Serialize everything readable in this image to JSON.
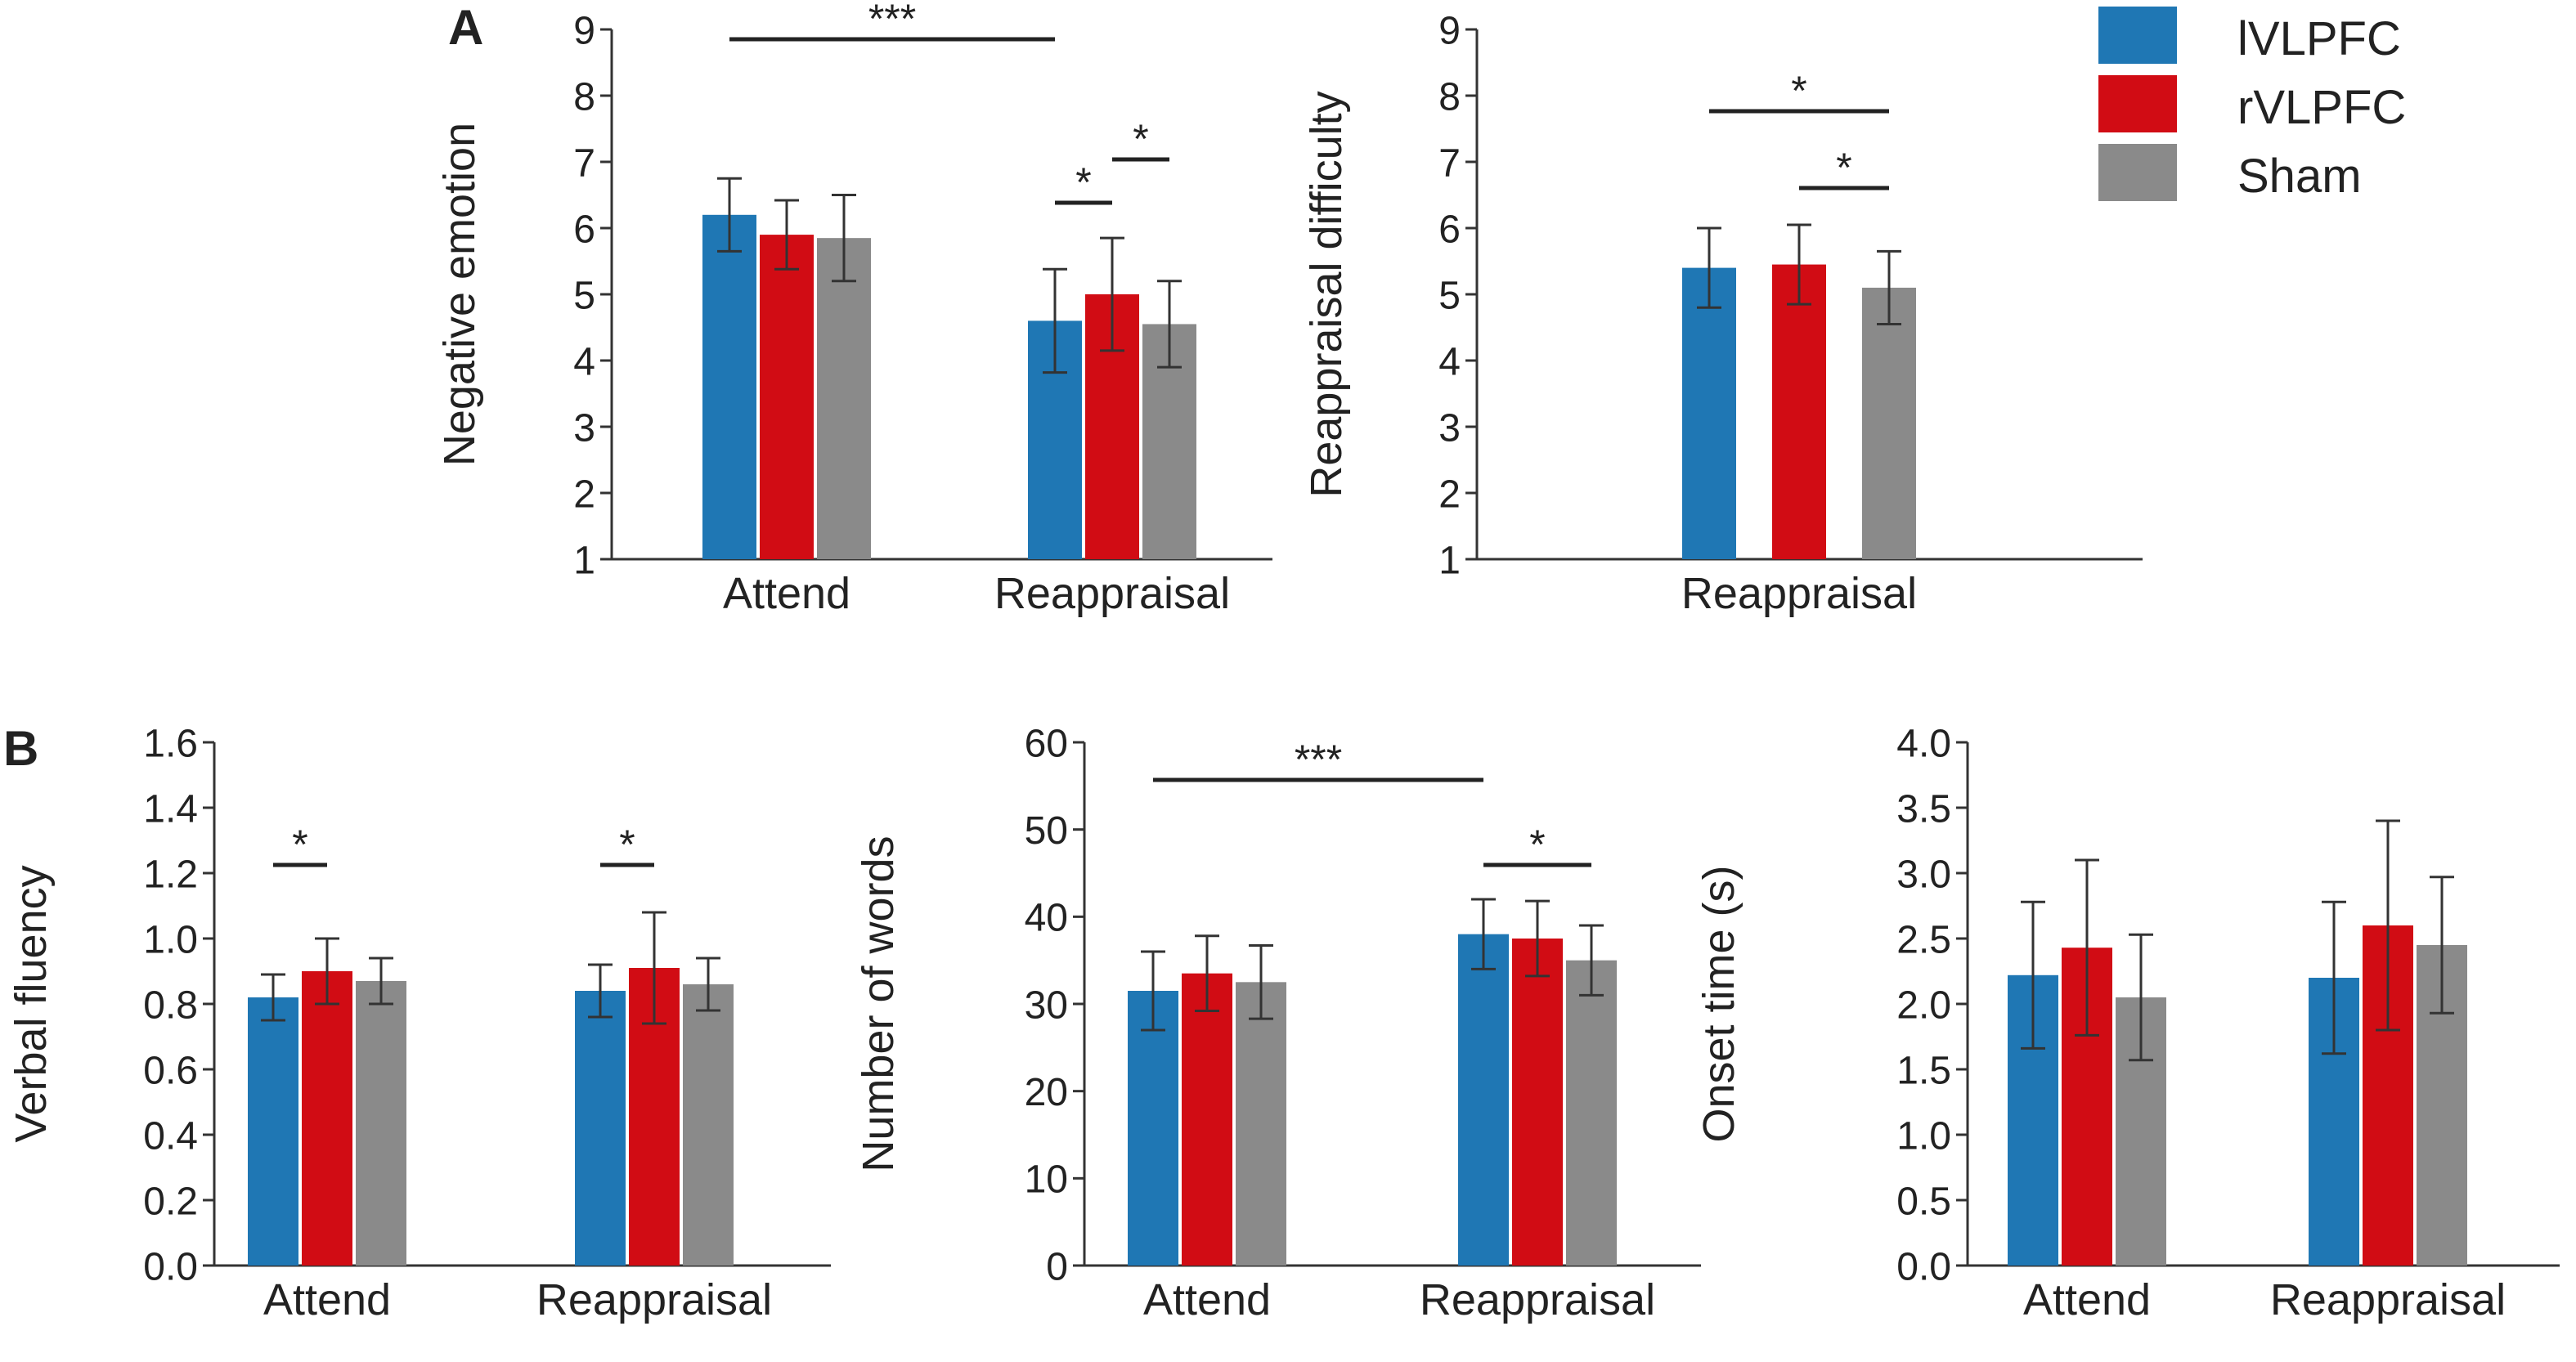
{
  "panel_labels": [
    "A",
    "B"
  ],
  "legend": {
    "entries": [
      {
        "label": "lVLPFC",
        "color": "#1f77b4"
      },
      {
        "label": "rVLPFC",
        "color": "#d10c14"
      },
      {
        "label": "Sham",
        "color": "#8a8a8a"
      }
    ]
  },
  "chart_data": [
    {
      "id": "negative-emotion",
      "type": "bar",
      "ylabel": "Negative emotion",
      "xlabel": "",
      "ylim": [
        1,
        9
      ],
      "yticks": [
        "1",
        "2",
        "3",
        "4",
        "5",
        "6",
        "7",
        "8",
        "9"
      ],
      "categories": [
        "Attend",
        "Reappraisal"
      ],
      "series": [
        {
          "name": "lVLPFC",
          "values": [
            6.2,
            4.6
          ],
          "errors": [
            0.55,
            0.78
          ]
        },
        {
          "name": "rVLPFC",
          "values": [
            5.9,
            5.0
          ],
          "errors": [
            0.52,
            0.85
          ]
        },
        {
          "name": "Sham",
          "values": [
            5.85,
            4.55
          ],
          "errors": [
            0.65,
            0.65
          ]
        }
      ],
      "significance": [
        {
          "label": "***",
          "from": [
            0,
            0
          ],
          "to": [
            1,
            0
          ]
        },
        {
          "label": "*",
          "from": [
            1,
            0
          ],
          "to": [
            1,
            1
          ]
        },
        {
          "label": "*",
          "from": [
            1,
            1
          ],
          "to": [
            1,
            2
          ]
        }
      ]
    },
    {
      "id": "reappraisal-difficulty",
      "type": "bar",
      "ylabel": "Reappraisal difficulty",
      "xlabel": "",
      "ylim": [
        1,
        9
      ],
      "yticks": [
        "1",
        "2",
        "3",
        "4",
        "5",
        "6",
        "7",
        "8",
        "9"
      ],
      "categories": [
        "Reappraisal"
      ],
      "series": [
        {
          "name": "lVLPFC",
          "values": [
            5.4
          ],
          "errors": [
            0.6
          ]
        },
        {
          "name": "rVLPFC",
          "values": [
            5.45
          ],
          "errors": [
            0.6
          ]
        },
        {
          "name": "Sham",
          "values": [
            5.1
          ],
          "errors": [
            0.55
          ]
        }
      ],
      "significance": [
        {
          "label": "*",
          "from": [
            0,
            0
          ],
          "to": [
            0,
            2
          ]
        },
        {
          "label": "*",
          "from": [
            0,
            1
          ],
          "to": [
            0,
            2
          ]
        }
      ]
    },
    {
      "id": "verbal-fluency",
      "type": "bar",
      "ylabel": "Verbal fluency",
      "xlabel": "",
      "ylim": [
        0,
        1.6
      ],
      "yticks": [
        "0.0",
        "0.2",
        "0.4",
        "0.6",
        "0.8",
        "1.0",
        "1.2",
        "1.4",
        "1.6"
      ],
      "categories": [
        "Attend",
        "Reappraisal"
      ],
      "series": [
        {
          "name": "lVLPFC",
          "values": [
            0.82,
            0.84
          ],
          "errors": [
            0.07,
            0.08
          ]
        },
        {
          "name": "rVLPFC",
          "values": [
            0.9,
            0.91
          ],
          "errors": [
            0.1,
            0.17
          ]
        },
        {
          "name": "Sham",
          "values": [
            0.87,
            0.86
          ],
          "errors": [
            0.07,
            0.08
          ]
        }
      ],
      "significance": [
        {
          "label": "*",
          "from": [
            0,
            0
          ],
          "to": [
            0,
            1
          ]
        },
        {
          "label": "*",
          "from": [
            1,
            0
          ],
          "to": [
            1,
            1
          ]
        }
      ]
    },
    {
      "id": "number-of-words",
      "type": "bar",
      "ylabel": "Number of words",
      "xlabel": "",
      "ylim": [
        0,
        60
      ],
      "yticks": [
        "0",
        "10",
        "20",
        "30",
        "40",
        "50",
        "60"
      ],
      "categories": [
        "Attend",
        "Reappraisal"
      ],
      "series": [
        {
          "name": "lVLPFC",
          "values": [
            31.5,
            38
          ],
          "errors": [
            4.5,
            4
          ]
        },
        {
          "name": "rVLPFC",
          "values": [
            33.5,
            37.5
          ],
          "errors": [
            4.3,
            4.3
          ]
        },
        {
          "name": "Sham",
          "values": [
            32.5,
            35
          ],
          "errors": [
            4.2,
            4
          ]
        }
      ],
      "significance": [
        {
          "label": "***",
          "from": [
            0,
            0
          ],
          "to": [
            1,
            0
          ]
        },
        {
          "label": "*",
          "from": [
            1,
            0
          ],
          "to": [
            1,
            2
          ]
        }
      ]
    },
    {
      "id": "onset-time",
      "type": "bar",
      "ylabel": "Onset time (s)",
      "xlabel": "",
      "ylim": [
        0,
        4
      ],
      "yticks": [
        "0.0",
        "0.5",
        "1.0",
        "1.5",
        "2.0",
        "2.5",
        "3.0",
        "3.5",
        "4.0"
      ],
      "categories": [
        "Attend",
        "Reappraisal"
      ],
      "series": [
        {
          "name": "lVLPFC",
          "values": [
            2.22,
            2.2
          ],
          "errors": [
            0.56,
            0.58
          ]
        },
        {
          "name": "rVLPFC",
          "values": [
            2.43,
            2.6
          ],
          "errors": [
            0.67,
            0.8
          ]
        },
        {
          "name": "Sham",
          "values": [
            2.05,
            2.45
          ],
          "errors": [
            0.48,
            0.52
          ]
        }
      ],
      "significance": []
    }
  ]
}
